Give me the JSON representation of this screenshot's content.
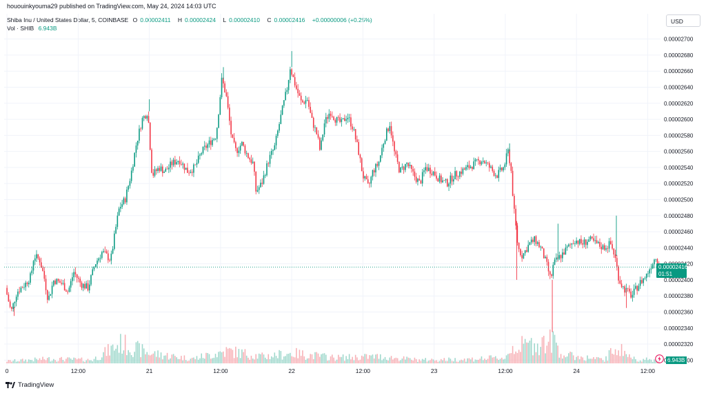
{
  "header": {
    "publisher_line": "hououinkyouma29 published on TradingView.com, May 24, 2024 14:03 UTC"
  },
  "legend": {
    "symbol": "Shiba Inu / United States Dollar, 5, COINBASE",
    "open_label": "O",
    "open": "0.00002411",
    "high_label": "H",
    "high": "0.00002424",
    "low_label": "L",
    "low": "0.00002410",
    "close_label": "C",
    "close": "0.00002416",
    "change": "+0.00000006 (+0.25%)",
    "vol_label": "Vol · SHIB",
    "vol_value": "6.943B"
  },
  "currency_button": "USD",
  "last_price_tag": {
    "price": "0.00002416",
    "countdown": "01:51"
  },
  "volume_tag": "6.943B",
  "footer": {
    "brand": "TradingView"
  },
  "colors": {
    "up": "#089981",
    "down": "#f23645",
    "up_volume": "#9fd8cc",
    "down_volume": "#f7b1b6",
    "grid": "#f0f3fa",
    "price_line": "#089981"
  },
  "chart_data": {
    "type": "candlestick",
    "symbol": "SHIBUSD",
    "interval": "5",
    "y_ticks": [
      "0.00002300",
      "0.00002320",
      "0.00002340",
      "0.00002360",
      "0.00002380",
      "0.00002400",
      "0.00002420",
      "0.00002440",
      "0.00002460",
      "0.00002480",
      "0.00002500",
      "0.00002520",
      "0.00002540",
      "0.00002560",
      "0.00002580",
      "0.00002600",
      "0.00002620",
      "0.00002640",
      "0.00002660",
      "0.00002680",
      "0.00002700"
    ],
    "y_tick_values": [
      2.3e-05,
      2.32e-05,
      2.34e-05,
      2.36e-05,
      2.38e-05,
      2.4e-05,
      2.42e-05,
      2.44e-05,
      2.46e-05,
      2.48e-05,
      2.5e-05,
      2.52e-05,
      2.54e-05,
      2.56e-05,
      2.58e-05,
      2.6e-05,
      2.62e-05,
      2.64e-05,
      2.66e-05,
      2.68e-05,
      2.7e-05
    ],
    "x_ticks": [
      "0",
      "12:00",
      "21",
      "12:00",
      "22",
      "12:00",
      "23",
      "12:00",
      "24",
      "12:00"
    ],
    "x_tick_days": [
      20.0,
      20.5,
      21.0,
      21.5,
      22.0,
      22.5,
      23.0,
      23.5,
      24.0,
      24.5
    ],
    "ylim": [
      2.296e-05,
      2.71e-05
    ],
    "xlim": [
      19.98,
      24.59
    ],
    "price_path": [
      [
        20.0,
        2.39e-05
      ],
      [
        20.04,
        2.36e-05
      ],
      [
        20.08,
        2.385e-05
      ],
      [
        20.14,
        2.395e-05
      ],
      [
        20.18,
        2.405e-05
      ],
      [
        20.2,
        2.43e-05
      ],
      [
        20.24,
        2.425e-05
      ],
      [
        20.27,
        2.405e-05
      ],
      [
        20.3,
        2.375e-05
      ],
      [
        20.34,
        2.4e-05
      ],
      [
        20.4,
        2.395e-05
      ],
      [
        20.44,
        2.385e-05
      ],
      [
        20.48,
        2.41e-05
      ],
      [
        20.53,
        2.395e-05
      ],
      [
        20.58,
        2.39e-05
      ],
      [
        20.63,
        2.42e-05
      ],
      [
        20.68,
        2.435e-05
      ],
      [
        20.74,
        2.425e-05
      ],
      [
        20.78,
        2.47e-05
      ],
      [
        20.8,
        2.49e-05
      ],
      [
        20.84,
        2.5e-05
      ],
      [
        20.88,
        2.53e-05
      ],
      [
        20.92,
        2.57e-05
      ],
      [
        20.96,
        2.6e-05
      ],
      [
        21.0,
        2.61e-05
      ],
      [
        21.03,
        2.53e-05
      ],
      [
        21.08,
        2.54e-05
      ],
      [
        21.12,
        2.535e-05
      ],
      [
        21.17,
        2.545e-05
      ],
      [
        21.22,
        2.55e-05
      ],
      [
        21.28,
        2.535e-05
      ],
      [
        21.33,
        2.54e-05
      ],
      [
        21.38,
        2.56e-05
      ],
      [
        21.43,
        2.57e-05
      ],
      [
        21.48,
        2.58e-05
      ],
      [
        21.52,
        2.65e-05
      ],
      [
        21.55,
        2.63e-05
      ],
      [
        21.59,
        2.575e-05
      ],
      [
        21.62,
        2.56e-05
      ],
      [
        21.66,
        2.57e-05
      ],
      [
        21.7,
        2.555e-05
      ],
      [
        21.74,
        2.545e-05
      ],
      [
        21.76,
        2.51e-05
      ],
      [
        21.8,
        2.52e-05
      ],
      [
        21.85,
        2.55e-05
      ],
      [
        21.89,
        2.565e-05
      ],
      [
        21.93,
        2.6e-05
      ],
      [
        21.98,
        2.64e-05
      ],
      [
        22.0,
        2.665e-05
      ],
      [
        22.04,
        2.64e-05
      ],
      [
        22.08,
        2.62e-05
      ],
      [
        22.12,
        2.625e-05
      ],
      [
        22.15,
        2.6e-05
      ],
      [
        22.19,
        2.58e-05
      ],
      [
        22.21,
        2.56e-05
      ],
      [
        22.24,
        2.595e-05
      ],
      [
        22.28,
        2.61e-05
      ],
      [
        22.32,
        2.6e-05
      ],
      [
        22.36,
        2.595e-05
      ],
      [
        22.4,
        2.605e-05
      ],
      [
        22.44,
        2.59e-05
      ],
      [
        22.48,
        2.56e-05
      ],
      [
        22.51,
        2.53e-05
      ],
      [
        22.55,
        2.515e-05
      ],
      [
        22.58,
        2.535e-05
      ],
      [
        22.62,
        2.545e-05
      ],
      [
        22.66,
        2.575e-05
      ],
      [
        22.7,
        2.595e-05
      ],
      [
        22.73,
        2.56e-05
      ],
      [
        22.77,
        2.535e-05
      ],
      [
        22.82,
        2.545e-05
      ],
      [
        22.87,
        2.53e-05
      ],
      [
        22.91,
        2.52e-05
      ],
      [
        22.95,
        2.54e-05
      ],
      [
        23.0,
        2.535e-05
      ],
      [
        23.05,
        2.525e-05
      ],
      [
        23.1,
        2.52e-05
      ],
      [
        23.15,
        2.53e-05
      ],
      [
        23.2,
        2.535e-05
      ],
      [
        23.25,
        2.54e-05
      ],
      [
        23.3,
        2.545e-05
      ],
      [
        23.35,
        2.55e-05
      ],
      [
        23.4,
        2.54e-05
      ],
      [
        23.45,
        2.53e-05
      ],
      [
        23.5,
        2.54e-05
      ],
      [
        23.53,
        2.56e-05
      ],
      [
        23.55,
        2.54e-05
      ],
      [
        23.57,
        2.49e-05
      ],
      [
        23.6,
        2.44e-05
      ],
      [
        23.63,
        2.43e-05
      ],
      [
        23.68,
        2.445e-05
      ],
      [
        23.72,
        2.45e-05
      ],
      [
        23.76,
        2.44e-05
      ],
      [
        23.8,
        2.42e-05
      ],
      [
        23.83,
        2.4e-05
      ],
      [
        23.85,
        2.42e-05
      ],
      [
        23.9,
        2.43e-05
      ],
      [
        23.95,
        2.44e-05
      ],
      [
        24.0,
        2.45e-05
      ],
      [
        24.05,
        2.445e-05
      ],
      [
        24.1,
        2.45e-05
      ],
      [
        24.15,
        2.445e-05
      ],
      [
        24.2,
        2.44e-05
      ],
      [
        24.25,
        2.445e-05
      ],
      [
        24.28,
        2.43e-05
      ],
      [
        24.31,
        2.4e-05
      ],
      [
        24.34,
        2.39e-05
      ],
      [
        24.37,
        2.385e-05
      ],
      [
        24.4,
        2.38e-05
      ],
      [
        24.45,
        2.395e-05
      ],
      [
        24.5,
        2.405e-05
      ],
      [
        24.54,
        2.42e-05
      ],
      [
        24.57,
        2.43e-05
      ],
      [
        24.59,
        2.416e-05
      ]
    ],
    "spikes": [
      [
        20.05,
        2.355e-05
      ],
      [
        21.0,
        2.625e-05
      ],
      [
        21.52,
        2.665e-05
      ],
      [
        22.0,
        2.685e-05
      ],
      [
        23.53,
        2.57e-05
      ],
      [
        23.58,
        2.4e-05
      ],
      [
        23.83,
        2.335e-05
      ],
      [
        23.87,
        2.47e-05
      ],
      [
        24.28,
        2.48e-05
      ],
      [
        24.35,
        2.365e-05
      ]
    ],
    "last_price": 2.416e-05,
    "volume_ylim": [
      0,
      80
    ],
    "volume_path": [
      [
        20.0,
        4
      ],
      [
        20.3,
        8
      ],
      [
        20.6,
        6
      ],
      [
        20.8,
        35
      ],
      [
        21.0,
        18
      ],
      [
        21.3,
        8
      ],
      [
        21.55,
        22
      ],
      [
        21.8,
        12
      ],
      [
        22.0,
        18
      ],
      [
        22.3,
        10
      ],
      [
        22.6,
        12
      ],
      [
        22.9,
        6
      ],
      [
        23.2,
        7
      ],
      [
        23.5,
        10
      ],
      [
        23.55,
        28
      ],
      [
        23.85,
        40
      ],
      [
        23.9,
        15
      ],
      [
        24.2,
        6
      ],
      [
        24.28,
        30
      ],
      [
        24.4,
        8
      ],
      [
        24.59,
        5
      ]
    ]
  }
}
